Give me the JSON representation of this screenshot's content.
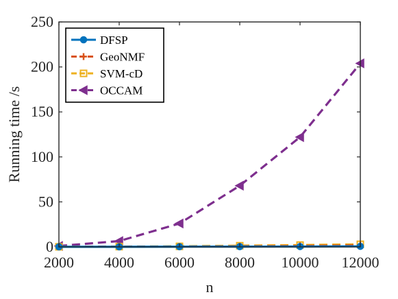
{
  "chart_data": {
    "type": "line",
    "title": "",
    "xlabel": "n",
    "ylabel": "Running time /s",
    "xlim": [
      2000,
      12000
    ],
    "ylim": [
      0,
      250
    ],
    "xticks": [
      2000,
      4000,
      6000,
      8000,
      10000,
      12000
    ],
    "yticks": [
      0,
      50,
      100,
      150,
      200,
      250
    ],
    "grid": false,
    "legend_position": "top-left",
    "x": [
      2000,
      4000,
      6000,
      8000,
      10000,
      12000
    ],
    "series": [
      {
        "name": "DFSP",
        "values": [
          0.1,
          0.1,
          0.2,
          0.3,
          0.4,
          0.6
        ],
        "color": "#0072BD",
        "marker": "circle",
        "dash": "solid"
      },
      {
        "name": "GeoNMF",
        "values": [
          0.1,
          0.2,
          0.4,
          0.7,
          1.1,
          1.7
        ],
        "color": "#D95319",
        "marker": "plus",
        "dash": "dashed"
      },
      {
        "name": "SVM-cD",
        "values": [
          0.1,
          0.3,
          0.6,
          1.3,
          2.0,
          2.9
        ],
        "color": "#EDB120",
        "marker": "square",
        "dash": "dashed"
      },
      {
        "name": "OCCAM",
        "values": [
          1.0,
          6.5,
          26,
          68,
          122,
          204
        ],
        "color": "#7E2F8E",
        "marker": "triangle-left",
        "dash": "dashed"
      }
    ]
  }
}
